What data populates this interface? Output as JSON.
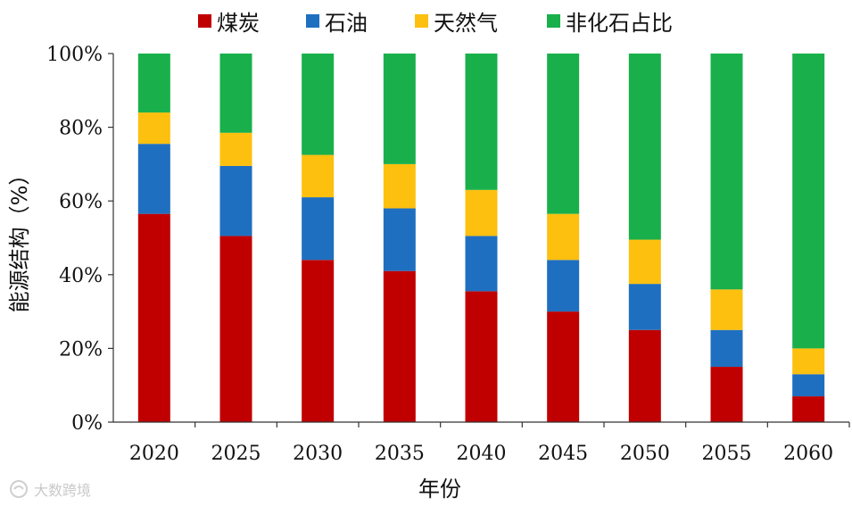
{
  "chart_data": {
    "type": "bar",
    "stacked": true,
    "title": "",
    "xlabel": "年份",
    "ylabel": "能源结构（%）",
    "ylim": [
      0,
      100
    ],
    "ytick_labels": [
      "0%",
      "20%",
      "40%",
      "60%",
      "80%",
      "100%"
    ],
    "yticks": [
      0,
      20,
      40,
      60,
      80,
      100
    ],
    "categories": [
      "2020",
      "2025",
      "2030",
      "2035",
      "2040",
      "2045",
      "2050",
      "2055",
      "2060"
    ],
    "legend_position": "top",
    "series": [
      {
        "name": "煤炭",
        "color": "#c00000",
        "values": [
          56.5,
          50.5,
          44,
          41,
          35.5,
          30,
          25,
          15,
          7
        ]
      },
      {
        "name": "石油",
        "color": "#1f6fc0",
        "values": [
          19,
          19,
          17,
          17,
          15,
          14,
          12.5,
          10,
          6
        ]
      },
      {
        "name": "天然气",
        "color": "#fdc00f",
        "values": [
          8.5,
          9,
          11.5,
          12,
          12.5,
          12.5,
          12,
          11,
          7
        ]
      },
      {
        "name": "非化石占比",
        "color": "#19b04b",
        "values": [
          16,
          21.5,
          27.5,
          30,
          37,
          43.5,
          50.5,
          64,
          80
        ]
      }
    ]
  },
  "watermark": {
    "text": "大数跨境"
  }
}
